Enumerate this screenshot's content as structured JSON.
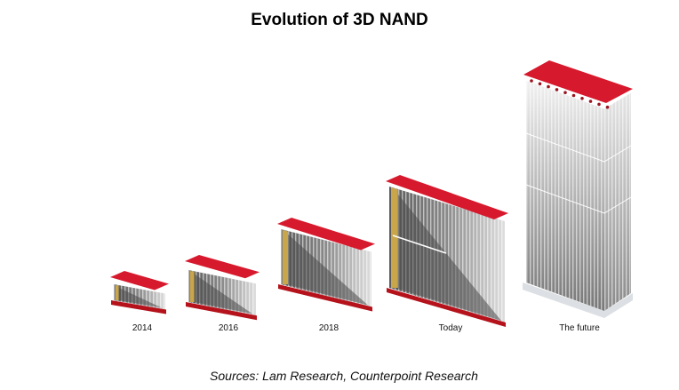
{
  "title": "Evolution of 3D NAND",
  "stages": [
    {
      "label": "2014"
    },
    {
      "label": "2016"
    },
    {
      "label": "2018"
    },
    {
      "label": "Today"
    },
    {
      "label": "The future"
    }
  ],
  "source": "Sources: Lam Research, Counterpoint Research",
  "colors": {
    "wordline_red": "#d7192d",
    "base_red": "#b5121b",
    "stack_gray": "#6e6e6e",
    "contact_gold": "#c9a64a"
  }
}
